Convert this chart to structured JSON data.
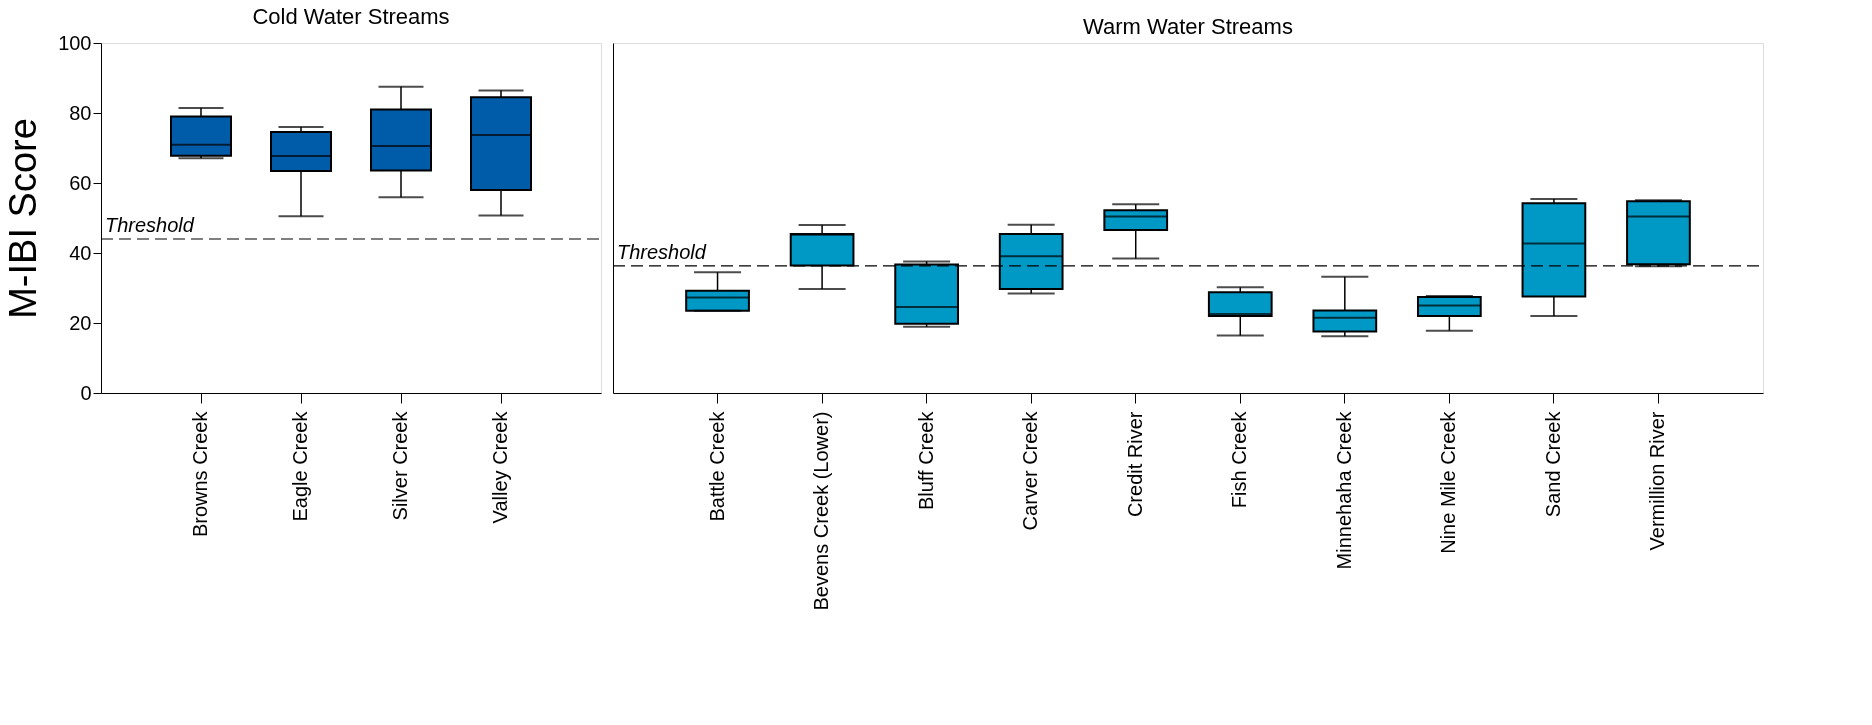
{
  "chart_data": [
    {
      "type": "box",
      "title": "Cold Water Streams",
      "ylabel": "M-IBI Score",
      "categories": [
        "Browns Creek",
        "Eagle Creek",
        "Silver Creek",
        "Valley Creek"
      ],
      "color": "#005ba8",
      "boxes": [
        {
          "low": 67.1,
          "q1": 67.8,
          "median": 70.9,
          "q3": 79.0,
          "high": 81.4
        },
        {
          "low": 50.5,
          "q1": 63.4,
          "median": 67.7,
          "q3": 74.6,
          "high": 76.0
        },
        {
          "low": 55.9,
          "q1": 63.6,
          "median": 70.6,
          "q3": 81.0,
          "high": 87.5
        },
        {
          "low": 50.7,
          "q1": 58.0,
          "median": 73.7,
          "q3": 84.5,
          "high": 86.4
        }
      ],
      "ylim": [
        0,
        100
      ],
      "yticks": [
        0,
        20,
        40,
        60,
        80,
        100
      ],
      "grid": false,
      "ref_lines": [
        {
          "axis": "y",
          "value": 44.0,
          "label": "Threshold",
          "line_style": "dashed"
        }
      ]
    },
    {
      "type": "box",
      "title": "Warm Water Streams",
      "categories": [
        "Battle Creek",
        "Bevens Creek (Lower)",
        "Bluff Creek",
        "Carver Creek",
        "Credit River",
        "Fish Creek",
        "Minnehaha Creek",
        "Nine Mile Creek",
        "Sand Creek",
        "Vermillion River"
      ],
      "color": "#0099c6",
      "boxes": [
        {
          "low": 23.5,
          "q1": 23.5,
          "median": 27.3,
          "q3": 29.2,
          "high": 34.5
        },
        {
          "low": 29.7,
          "q1": 36.4,
          "median": 45.2,
          "q3": 45.4,
          "high": 48.0
        },
        {
          "low": 18.9,
          "q1": 19.8,
          "median": 24.6,
          "q3": 36.7,
          "high": 37.6
        },
        {
          "low": 28.4,
          "q1": 29.7,
          "median": 39.1,
          "q3": 45.4,
          "high": 48.1
        },
        {
          "low": 38.4,
          "q1": 46.6,
          "median": 50.4,
          "q3": 52.2,
          "high": 53.9
        },
        {
          "low": 16.4,
          "q1": 22.0,
          "median": 22.6,
          "q3": 28.8,
          "high": 30.2
        },
        {
          "low": 16.2,
          "q1": 17.6,
          "median": 21.5,
          "q3": 23.6,
          "high": 33.2
        },
        {
          "low": 17.8,
          "q1": 22.0,
          "median": 25.0,
          "q3": 27.4,
          "high": 27.7
        },
        {
          "low": 22.0,
          "q1": 27.6,
          "median": 42.7,
          "q3": 54.2,
          "high": 55.4
        },
        {
          "low": 36.2,
          "q1": 36.8,
          "median": 50.4,
          "q3": 54.8,
          "high": 55.1
        }
      ],
      "ylim": [
        0,
        100
      ],
      "grid": false,
      "tick_labels": "x",
      "ref_lines": [
        {
          "axis": "y",
          "value": 36.3,
          "label": "Threshold",
          "line_style": "dashed"
        }
      ]
    }
  ]
}
